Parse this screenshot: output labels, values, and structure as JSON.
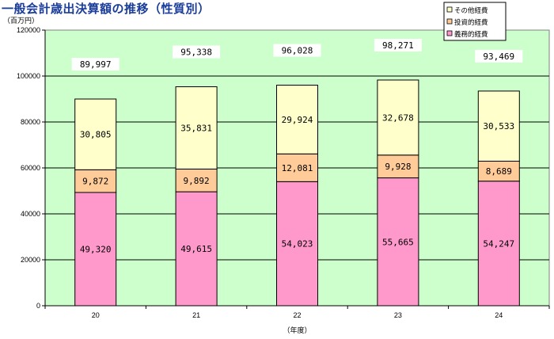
{
  "chart_data": {
    "type": "bar",
    "stacked": true,
    "title": "一般会計歳出決算額の推移（性質別）",
    "y_unit_label": "（百万円）",
    "xlabel": "（年度）",
    "ylim": [
      0,
      120000
    ],
    "y_ticks": [
      0,
      20000,
      40000,
      60000,
      80000,
      100000,
      120000
    ],
    "grid": true,
    "categories": [
      "20",
      "21",
      "22",
      "23",
      "24"
    ],
    "series": [
      {
        "name": "義務的経費",
        "color": "#ff99cc",
        "values": [
          49320,
          49615,
          54023,
          55665,
          54247
        ],
        "labels": [
          "49,320",
          "49,615",
          "54,023",
          "55,665",
          "54,247"
        ]
      },
      {
        "name": "投資的経費",
        "color": "#ffcc99",
        "values": [
          9872,
          9892,
          12081,
          9928,
          8689
        ],
        "labels": [
          "9,872",
          "9,892",
          "12,081",
          "9,928",
          "8,689"
        ]
      },
      {
        "name": "その他経費",
        "color": "#ffffcc",
        "values": [
          30805,
          35831,
          29924,
          32678,
          30533
        ],
        "labels": [
          "30,805",
          "35,831",
          "29,924",
          "32,678",
          "30,533"
        ]
      }
    ],
    "totals": [
      89997,
      95338,
      96028,
      98271,
      93469
    ],
    "total_labels": [
      "89,997",
      "95,338",
      "96,028",
      "98,271",
      "93,469"
    ],
    "legend_position": "top-right",
    "legend_order": [
      "その他経費",
      "投資的経費",
      "義務的経費"
    ],
    "plot_background": "#ccffcc"
  }
}
